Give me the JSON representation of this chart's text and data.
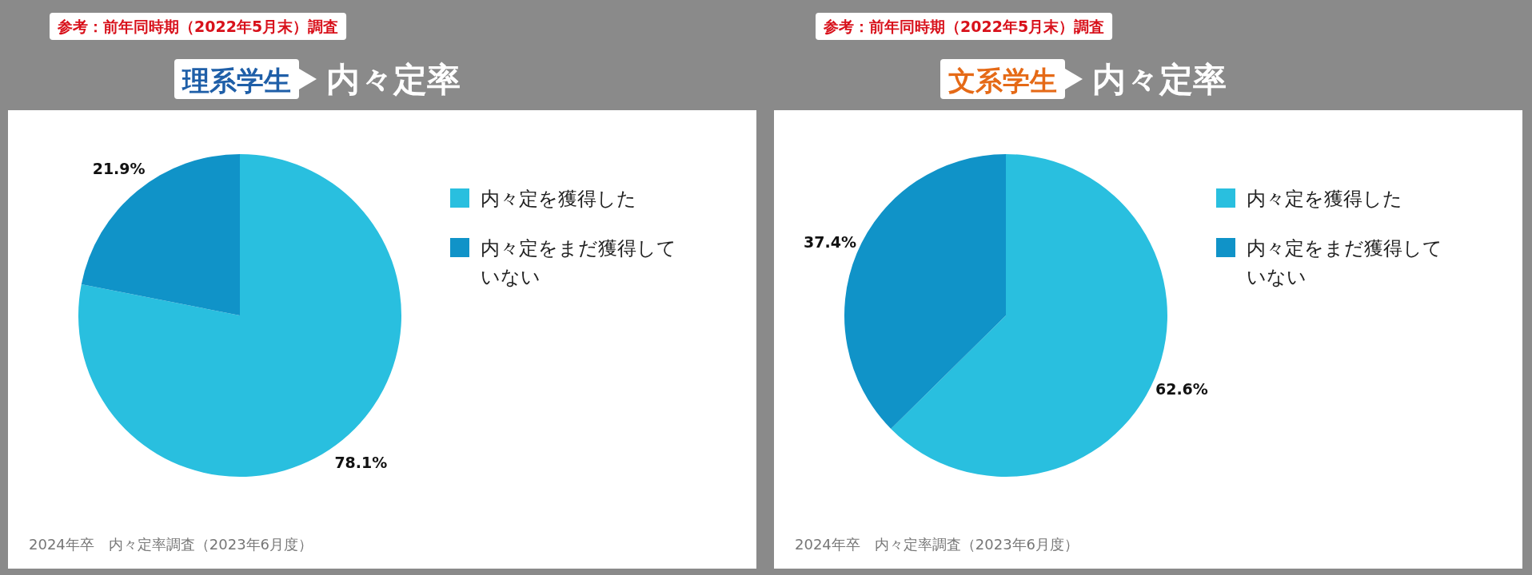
{
  "chart_data": [
    {
      "type": "pie",
      "title": "理系学生",
      "subtitle": "内々定率",
      "categories": [
        "内々定を獲得した",
        "内々定をまだ獲得していない"
      ],
      "values": [
        78.1,
        21.9
      ],
      "colors": [
        "#29bfdf",
        "#1093c8"
      ],
      "value_labels": [
        "78.1%",
        "21.9%"
      ],
      "legend": "right",
      "annotations": [
        "参考：前年同時期（2022年5月末）調査",
        "2024年卒　内々定率調査（2023年6月度）"
      ]
    },
    {
      "type": "pie",
      "title": "文系学生",
      "subtitle": "内々定率",
      "categories": [
        "内々定を獲得した",
        "内々定をまだ獲得していない"
      ],
      "values": [
        62.6,
        37.4
      ],
      "colors": [
        "#29bfdf",
        "#1093c8"
      ],
      "value_labels": [
        "62.6%",
        "37.4%"
      ],
      "legend": "right",
      "annotations": [
        "参考：前年同時期（2022年5月末）調査",
        "2024年卒　内々定率調査（2023年6月度）"
      ]
    }
  ]
}
